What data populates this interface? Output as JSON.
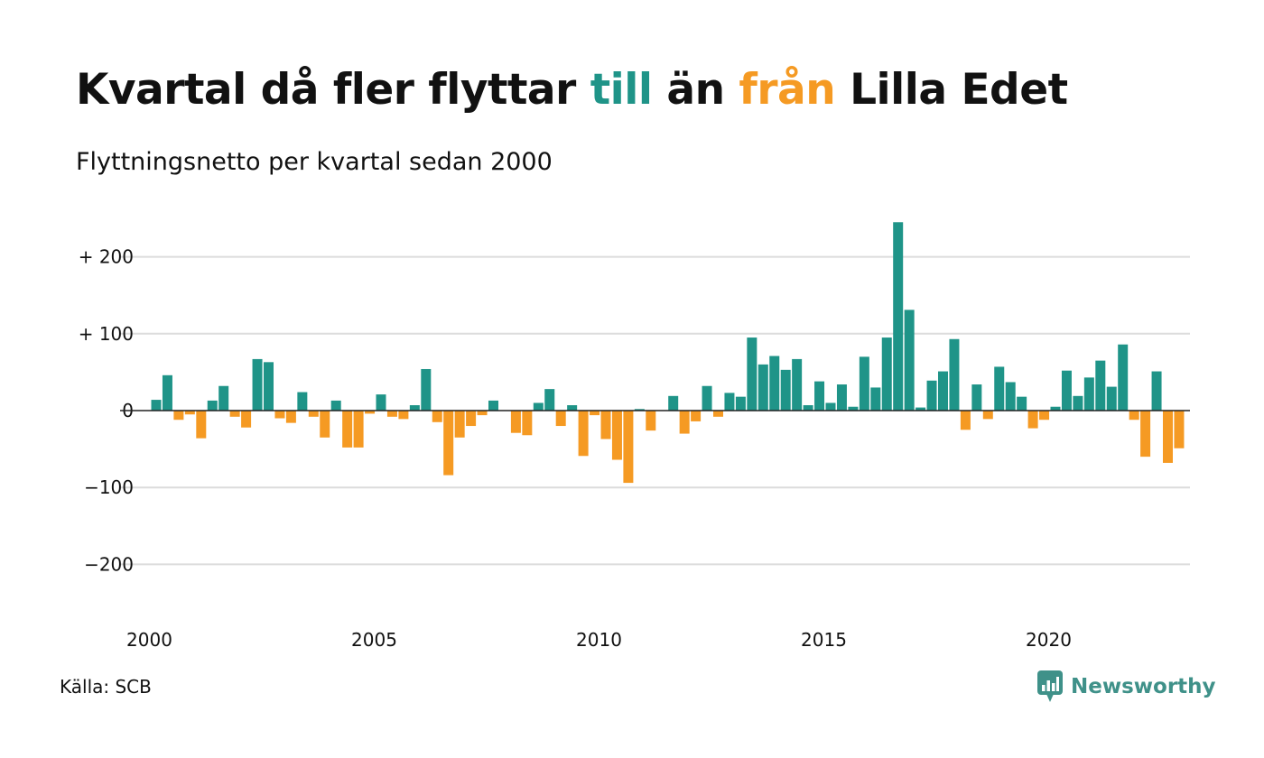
{
  "header": {
    "title_part1": "Kvartal då fler flyttar ",
    "title_pos": "till",
    "title_part2": " än ",
    "title_neg": "från",
    "title_part3": " Lilla Edet",
    "subtitle": "Flyttningsnetto per kvartal sedan 2000"
  },
  "footer": {
    "source": "Källa: SCB",
    "brand": "Newsworthy"
  },
  "colors": {
    "positive": "#1f9488",
    "negative": "#f59a23",
    "grid": "#dcdcdc",
    "zero": "#222222",
    "brand": "#3f9189"
  },
  "chart_data": {
    "type": "bar",
    "x_start_year": 2000,
    "periods_per_year": 4,
    "x_ticks": [
      "2000",
      "2005",
      "2010",
      "2015",
      "2020"
    ],
    "y_ticks": [
      {
        "value": 200,
        "label": "+ 200"
      },
      {
        "value": 100,
        "label": "+ 100"
      },
      {
        "value": 0,
        "label": "0"
      },
      {
        "value": -100,
        "label": "−100"
      },
      {
        "value": -200,
        "label": "−200"
      }
    ],
    "ylim": [
      -240,
      250
    ],
    "grid": true,
    "values": [
      14,
      46,
      -12,
      -5,
      -36,
      13,
      32,
      -8,
      -22,
      67,
      63,
      -10,
      -16,
      24,
      -8,
      -35,
      13,
      -48,
      -48,
      -4,
      21,
      -8,
      -11,
      7,
      54,
      -15,
      -84,
      -35,
      -20,
      -6,
      13,
      0,
      -29,
      -32,
      10,
      28,
      -20,
      7,
      -59,
      -6,
      -37,
      -64,
      -94,
      2,
      -26,
      0,
      19,
      -30,
      -14,
      32,
      -8,
      23,
      18,
      95,
      60,
      71,
      53,
      67,
      7,
      38,
      10,
      34,
      5,
      70,
      30,
      95,
      245,
      131,
      4,
      39,
      51,
      93,
      -25,
      34,
      -11,
      57,
      37,
      18,
      -23,
      -12,
      5,
      52,
      19,
      43,
      65,
      31,
      86,
      -12,
      -60,
      51,
      -68,
      -49
    ]
  }
}
